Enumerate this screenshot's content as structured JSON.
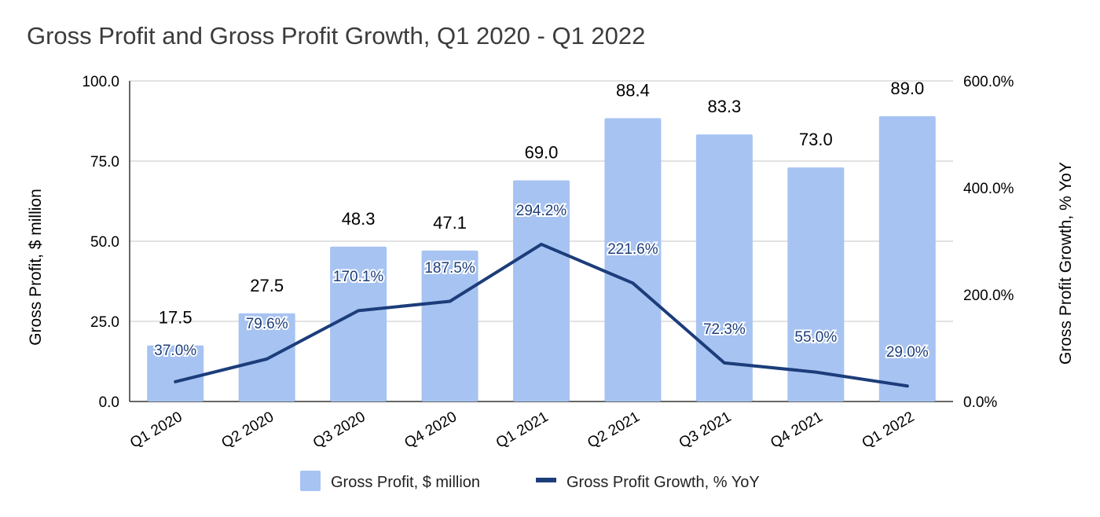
{
  "title": "Gross Profit and Gross Profit Growth, Q1 2020 - Q1 2022",
  "colors": {
    "bar": "#a7c3f2",
    "line": "#1c3d7a",
    "grid": "#c6c6c6"
  },
  "chart_data": {
    "type": "bar",
    "title": "Gross Profit and Gross Profit Growth, Q1 2020 - Q1 2022",
    "categories": [
      "Q1 2020",
      "Q2 2020",
      "Q3 2020",
      "Q4 2020",
      "Q1 2021",
      "Q2 2021",
      "Q3 2021",
      "Q4 2021",
      "Q1 2022"
    ],
    "series": [
      {
        "name": "Gross Profit, $ million",
        "type": "bar",
        "axis": "left",
        "values": [
          17.5,
          27.5,
          48.3,
          47.1,
          69.0,
          88.4,
          83.3,
          73.0,
          89.0
        ],
        "labels": [
          "17.5",
          "27.5",
          "48.3",
          "47.1",
          "69.0",
          "88.4",
          "83.3",
          "73.0",
          "89.0"
        ]
      },
      {
        "name": "Gross Profit Growth, % YoY",
        "type": "line",
        "axis": "right",
        "values": [
          37.0,
          79.6,
          170.1,
          187.5,
          294.2,
          221.6,
          72.3,
          55.0,
          29.0
        ],
        "labels": [
          "37.0%",
          "79.6%",
          "170.1%",
          "187.5%",
          "294.2%",
          "221.6%",
          "72.3%",
          "55.0%",
          "29.0%"
        ]
      }
    ],
    "ylabel": "Gross Profit, $ million",
    "y2label": "Gross Profit Growth, % YoY",
    "ylim": [
      0,
      100
    ],
    "y2lim": [
      0,
      600
    ],
    "yticks": [
      {
        "value": 0,
        "label": "0.0"
      },
      {
        "value": 25,
        "label": "25.0"
      },
      {
        "value": 50,
        "label": "50.0"
      },
      {
        "value": 75,
        "label": "75.0"
      },
      {
        "value": 100,
        "label": "100.0"
      }
    ],
    "y2ticks": [
      {
        "value": 0,
        "label": "0.0%"
      },
      {
        "value": 200,
        "label": "200.0%"
      },
      {
        "value": 400,
        "label": "400.0%"
      },
      {
        "value": 600,
        "label": "600.0%"
      }
    ],
    "grid": true,
    "legend": "bottom"
  }
}
